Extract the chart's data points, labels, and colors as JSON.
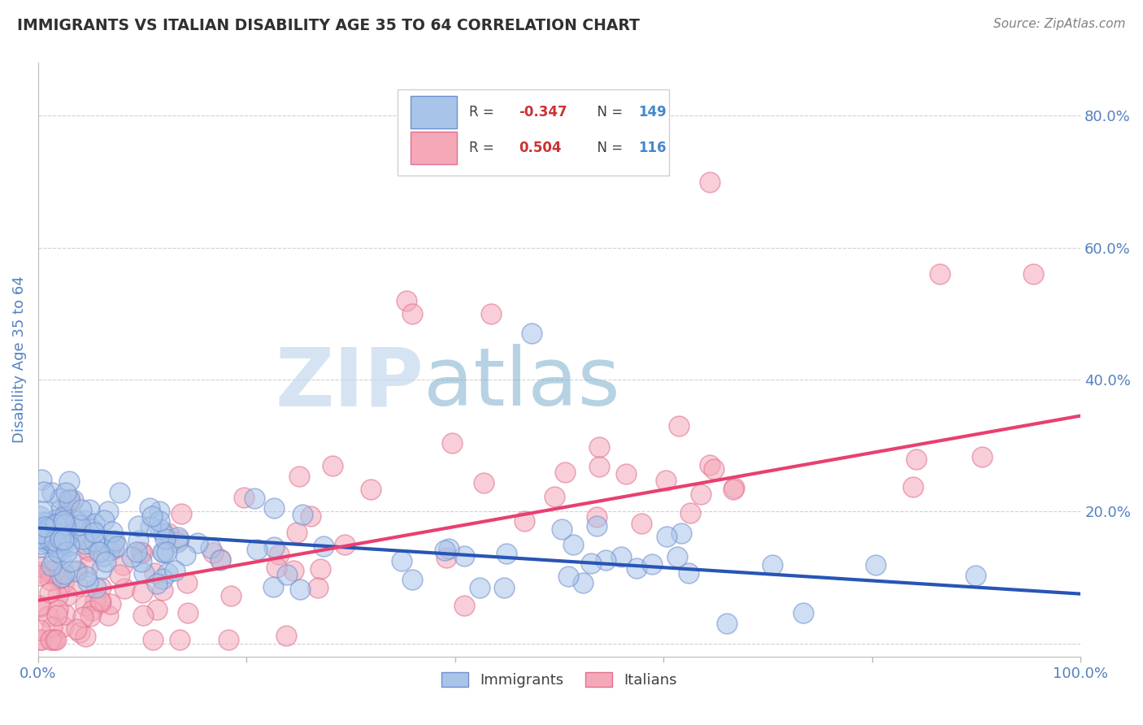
{
  "title": "IMMIGRANTS VS ITALIAN DISABILITY AGE 35 TO 64 CORRELATION CHART",
  "source_text": "Source: ZipAtlas.com",
  "ylabel": "Disability Age 35 to 64",
  "xlim": [
    0.0,
    1.0
  ],
  "ylim": [
    -0.02,
    0.88
  ],
  "yticks": [
    0.0,
    0.2,
    0.4,
    0.6,
    0.8
  ],
  "ytick_labels": [
    "",
    "20.0%",
    "40.0%",
    "60.0%",
    "80.0%"
  ],
  "xtick_vals": [
    0.0,
    0.2,
    0.4,
    0.6,
    0.8,
    1.0
  ],
  "xtick_labels": [
    "0.0%",
    "",
    "",
    "",
    "",
    "100.0%"
  ],
  "r1": "-0.347",
  "n1": "149",
  "r2": "0.504",
  "n2": "116",
  "immigrants_face": "#a8c4e8",
  "immigrants_edge": "#7090d0",
  "italians_face": "#f4a8b8",
  "italians_edge": "#e07090",
  "trend_blue": "#2855b5",
  "trend_pink": "#e84070",
  "watermark_zip": "ZIP",
  "watermark_atlas": "atlas",
  "background_color": "#ffffff",
  "grid_color": "#cccccc",
  "title_color": "#303030",
  "source_color": "#808080",
  "axis_label_color": "#5580c0",
  "r_color": "#cc3333",
  "n_color": "#4488cc",
  "legend_text_color": "#404040"
}
